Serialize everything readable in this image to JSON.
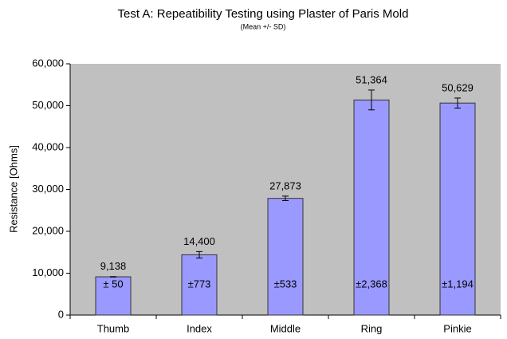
{
  "chart_data": {
    "type": "bar",
    "title": "Test A: Repeatibility Testing using Plaster of Paris Mold",
    "subtitle": "(Mean +/- SD)",
    "y_label": "Resistance [Ohms]",
    "categories": [
      "Thumb",
      "Index",
      "Middle",
      "Ring",
      "Pinkie"
    ],
    "values": [
      9138,
      14400,
      27873,
      51364,
      50629
    ],
    "value_labels": [
      "9,138",
      "14,400",
      "27,873",
      "51,364",
      "50,629"
    ],
    "errors": [
      50,
      773,
      533,
      2368,
      1194
    ],
    "error_labels": [
      "± 50",
      "±773",
      "±533",
      "±2,368",
      "±1,194"
    ],
    "color": "#9999ff",
    "background": "#c0c0c0",
    "ylim": [
      0,
      60000
    ],
    "yticks": [
      0,
      {
        "value": 10000,
        "label": "10,000"
      },
      {
        "value": 20000,
        "label": "20,000"
      },
      {
        "value": 30000,
        "label": "30,000"
      },
      {
        "value": 40000,
        "label": "40,000"
      },
      {
        "value": 50000,
        "label": "50,000"
      },
      {
        "value": 60000,
        "label": "60,000"
      }
    ],
    "grid": false
  }
}
